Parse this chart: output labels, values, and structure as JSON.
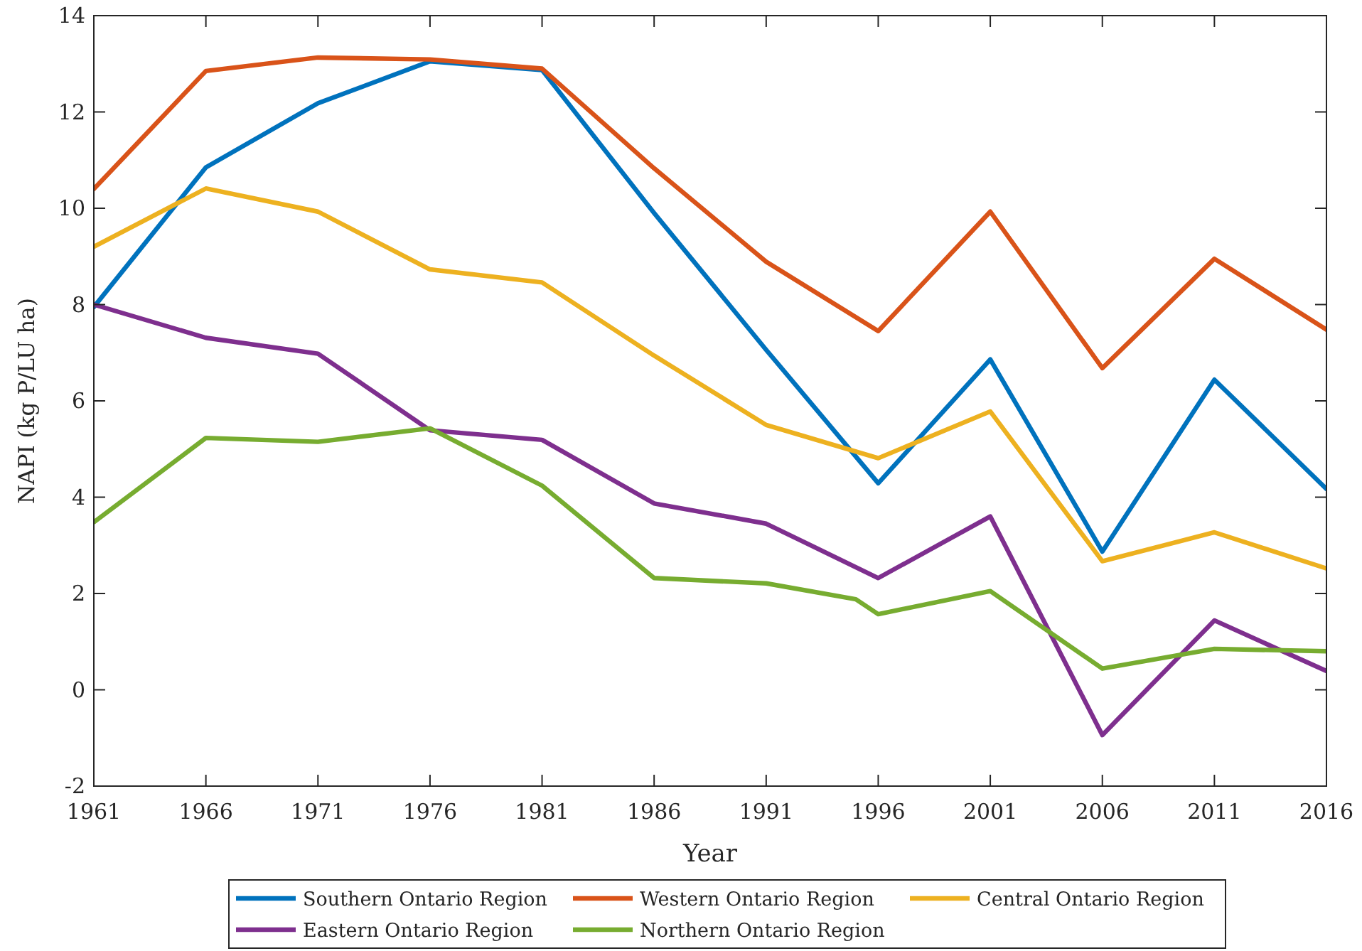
{
  "chart_data": {
    "type": "line",
    "xlabel": "Year",
    "ylabel": "NAPI (kg P/LU ha)",
    "x": [
      1961,
      1966,
      1971,
      1976,
      1981,
      1986,
      1991,
      1996,
      2001,
      2006,
      2011,
      2016
    ],
    "series": [
      {
        "name": "Southern Ontario Region",
        "color": "#0072bd",
        "values": [
          7.95,
          10.85,
          12.18,
          13.05,
          12.87,
          9.9,
          7.06,
          4.29,
          6.86,
          2.87,
          6.44,
          4.17
        ]
      },
      {
        "name": "Western Ontario Region",
        "color": "#d95319",
        "values": [
          10.4,
          12.85,
          13.13,
          13.09,
          12.9,
          10.83,
          8.89,
          7.45,
          9.93,
          6.68,
          8.95,
          7.48
        ]
      },
      {
        "name": "Central Ontario Region",
        "color": "#edb120",
        "values": [
          9.2,
          10.41,
          9.93,
          8.73,
          8.46,
          6.94,
          5.5,
          4.81,
          5.78,
          2.67,
          3.27,
          2.52
        ]
      },
      {
        "name": "Eastern Ontario Region",
        "color": "#7e2f8e",
        "values": [
          8.0,
          7.31,
          6.98,
          5.39,
          5.19,
          3.87,
          3.45,
          2.32,
          3.6,
          -0.94,
          1.44,
          0.39
        ]
      },
      {
        "name": "Northern Ontario Region",
        "color": "#77ac30",
        "x": [
          1961,
          1966,
          1971,
          1976,
          1981,
          1986,
          1991,
          1995,
          1996,
          2001,
          2006,
          2011,
          2016
        ],
        "values": [
          3.48,
          5.23,
          5.15,
          5.43,
          4.24,
          2.32,
          2.21,
          1.88,
          1.57,
          2.05,
          0.44,
          0.85,
          0.8
        ]
      }
    ],
    "xlim": [
      1961,
      2016
    ],
    "xticks": [
      1961,
      1966,
      1971,
      1976,
      1981,
      1986,
      1991,
      1996,
      2001,
      2006,
      2011,
      2016
    ],
    "ylim": [
      -2,
      14
    ],
    "yticks": [
      -2,
      0,
      2,
      4,
      6,
      8,
      10,
      12,
      14
    ],
    "grid": false,
    "legend": "bottom",
    "marker": "none",
    "line_style": "solid"
  }
}
